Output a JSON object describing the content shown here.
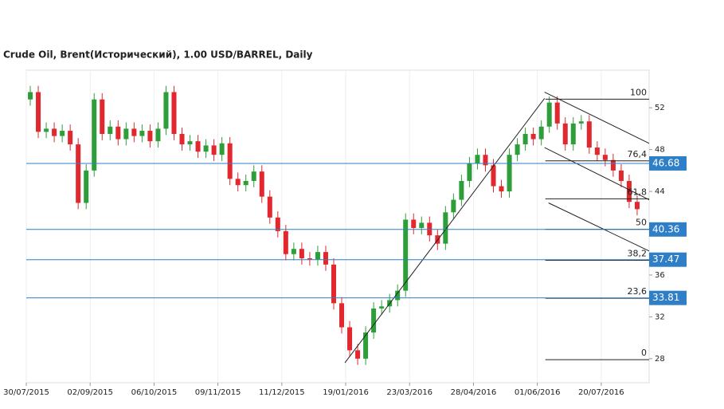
{
  "chart_data": {
    "type": "candlestick",
    "title": "Crude Oil, Brent(Исторический), 1.00 USD/BARREL, Daily",
    "xlim": [
      0,
      78
    ],
    "xticks": [
      {
        "value": 0,
        "label": "30/07/2015"
      },
      {
        "value": 8,
        "label": "02/09/2015"
      },
      {
        "value": 16,
        "label": "06/10/2015"
      },
      {
        "value": 24,
        "label": "09/11/2015"
      },
      {
        "value": 32,
        "label": "11/12/2015"
      },
      {
        "value": 40,
        "label": "19/01/2016"
      },
      {
        "value": 48,
        "label": "23/03/2016"
      },
      {
        "value": 56,
        "label": "28/04/2016"
      },
      {
        "value": 64,
        "label": "01/06/2016"
      },
      {
        "value": 72,
        "label": "20/07/2016"
      }
    ],
    "ylim": [
      25.7,
      55.6
    ],
    "yticks": [
      28,
      32,
      36,
      40,
      44,
      48,
      52
    ],
    "up_color": "#2e9e3a",
    "down_color": "#e0282e",
    "open": [
      52.8,
      53.5,
      49.7,
      50.0,
      49.3,
      49.8,
      48.5,
      42.9,
      46.0,
      52.8,
      49.5,
      50.2,
      49.0,
      50.0,
      49.3,
      49.8,
      48.8,
      50.0,
      53.5,
      49.5,
      48.5,
      48.8,
      47.8,
      48.4,
      47.5,
      48.6,
      45.2,
      44.6,
      45.0,
      45.9,
      43.5,
      41.5,
      40.2,
      38.0,
      38.5,
      37.6,
      37.5,
      38.2,
      37.0,
      33.3,
      31.0,
      28.8,
      28.0,
      30.5,
      32.8,
      33.0,
      33.6,
      34.5,
      41.3,
      40.5,
      41.0,
      39.8,
      39.0,
      42.0,
      43.2,
      45.0,
      46.7,
      47.5,
      46.5,
      44.5,
      44.0,
      47.5,
      48.5,
      49.5,
      49.0,
      50.2,
      52.5,
      50.5,
      48.5,
      50.5,
      50.7,
      48.2,
      47.5,
      47.0,
      46.0,
      45.0,
      43.0
    ],
    "high": [
      54.1,
      54.1,
      50.6,
      50.6,
      50.4,
      50.4,
      49.1,
      46.6,
      53.4,
      53.4,
      50.8,
      50.8,
      50.6,
      50.6,
      50.4,
      50.4,
      50.6,
      54.1,
      54.1,
      50.1,
      49.4,
      49.4,
      49.0,
      49.0,
      49.2,
      49.2,
      45.8,
      45.6,
      46.5,
      46.5,
      44.1,
      42.1,
      40.8,
      39.1,
      39.1,
      38.2,
      38.8,
      38.8,
      37.6,
      33.9,
      31.6,
      29.4,
      31.1,
      33.4,
      33.6,
      34.2,
      35.1,
      41.9,
      41.9,
      41.6,
      41.6,
      40.4,
      42.6,
      43.8,
      45.6,
      47.3,
      48.1,
      48.1,
      47.1,
      45.1,
      48.1,
      49.1,
      50.1,
      50.1,
      50.8,
      53.1,
      53.1,
      51.1,
      51.1,
      51.3,
      51.3,
      48.8,
      48.1,
      47.6,
      46.6,
      45.6,
      43.6
    ],
    "low": [
      52.2,
      49.1,
      49.1,
      48.7,
      48.7,
      47.9,
      42.3,
      42.3,
      45.4,
      48.9,
      48.9,
      48.4,
      48.4,
      48.7,
      48.7,
      48.2,
      48.2,
      49.4,
      48.9,
      47.9,
      47.9,
      47.2,
      47.2,
      46.9,
      46.9,
      44.6,
      44.0,
      44.0,
      44.4,
      42.9,
      40.9,
      39.6,
      37.4,
      37.4,
      37.0,
      36.9,
      36.9,
      36.4,
      32.7,
      30.4,
      28.2,
      27.4,
      27.4,
      29.9,
      32.2,
      32.4,
      33.0,
      33.9,
      39.9,
      39.9,
      39.2,
      38.4,
      38.4,
      41.4,
      42.6,
      44.4,
      46.1,
      45.9,
      43.9,
      43.4,
      43.4,
      46.9,
      47.9,
      48.4,
      48.4,
      49.6,
      49.9,
      47.9,
      47.9,
      49.9,
      47.6,
      46.9,
      46.4,
      45.4,
      44.4,
      42.4,
      41.7
    ],
    "close": [
      53.5,
      49.7,
      50.0,
      49.3,
      49.8,
      48.5,
      42.9,
      46.0,
      52.8,
      49.5,
      50.2,
      49.0,
      50.0,
      49.3,
      49.8,
      48.8,
      50.0,
      53.5,
      49.5,
      48.5,
      48.8,
      47.8,
      48.4,
      47.5,
      48.6,
      45.2,
      44.6,
      45.0,
      45.9,
      43.5,
      41.5,
      40.2,
      38.0,
      38.5,
      37.6,
      37.5,
      38.2,
      37.0,
      33.3,
      31.0,
      28.8,
      28.0,
      30.5,
      32.8,
      33.0,
      33.6,
      34.5,
      41.3,
      40.5,
      41.0,
      39.8,
      39.0,
      42.0,
      43.2,
      45.0,
      46.7,
      47.5,
      46.5,
      44.5,
      44.0,
      47.5,
      48.5,
      49.5,
      49.0,
      50.2,
      52.5,
      50.5,
      48.5,
      50.5,
      50.7,
      48.2,
      47.5,
      47.0,
      46.0,
      45.0,
      43.0,
      42.3
    ],
    "price_lines": [
      46.68,
      40.36,
      37.47,
      33.81
    ],
    "price_line_color": "#2f7fc8",
    "fibonacci": {
      "start": 65,
      "levels": [
        {
          "level": 100,
          "price": 52.83
        },
        {
          "level": {
            "value": 76.4,
            "label": "76,4"
          },
          "price": 46.92
        },
        {
          "level": {
            "value": 61.8,
            "label": "61,8"
          },
          "price": 43.29
        },
        {
          "level": 50,
          "price": 40.37
        },
        {
          "level": {
            "value": 38.2,
            "label": "38,2"
          },
          "price": 37.41
        },
        {
          "level": {
            "value": 23.6,
            "label": "23,6"
          },
          "price": 33.78
        },
        {
          "level": 0,
          "price": 27.9
        }
      ]
    },
    "trendlines": [
      {
        "x1": 39.9,
        "y1": 27.6,
        "x2": 64.9,
        "y2": 52.9
      },
      {
        "x1": 64.9,
        "y1": 53.5,
        "x2": 78,
        "y2": 48.6
      },
      {
        "x1": 64.9,
        "y1": 48.2,
        "x2": 78,
        "y2": 43.2
      },
      {
        "x1": 65.4,
        "y1": 42.9,
        "x2": 78,
        "y2": 38.3
      }
    ]
  }
}
